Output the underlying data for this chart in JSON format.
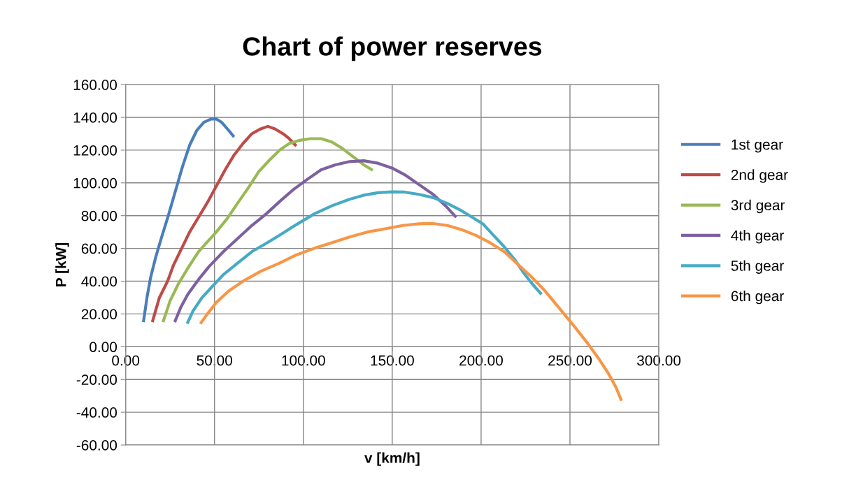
{
  "chart_data": {
    "type": "line",
    "title": "Chart of power reserves",
    "xlabel": "v [km/h]",
    "ylabel": "P [kW]",
    "xlim": [
      0,
      300
    ],
    "ylim": [
      -60,
      160
    ],
    "xticks": [
      {
        "value": 0,
        "label": "0.00"
      },
      {
        "value": 50,
        "label": "50.00"
      },
      {
        "value": 100,
        "label": "100.00"
      },
      {
        "value": 150,
        "label": "150.00"
      },
      {
        "value": 200,
        "label": "200.00"
      },
      {
        "value": 250,
        "label": "250.00"
      },
      {
        "value": 300,
        "label": "300.00"
      }
    ],
    "yticks": [
      {
        "value": -60,
        "label": "-60.00"
      },
      {
        "value": -40,
        "label": "-40.00"
      },
      {
        "value": -20,
        "label": "-20.00"
      },
      {
        "value": 0,
        "label": "0.00"
      },
      {
        "value": 20,
        "label": "20.00"
      },
      {
        "value": 40,
        "label": "40.00"
      },
      {
        "value": 60,
        "label": "60.00"
      },
      {
        "value": 80,
        "label": "80.00"
      },
      {
        "value": 100,
        "label": "100.00"
      },
      {
        "value": 120,
        "label": "120.00"
      },
      {
        "value": 140,
        "label": "140.00"
      },
      {
        "value": 160,
        "label": "160.00"
      }
    ],
    "grid": true,
    "legend": "right",
    "marker": "none",
    "line_style": "solid",
    "series": [
      {
        "name": "1st gear",
        "color": "#4a7ebb",
        "x": [
          10,
          12,
          14,
          17,
          20,
          24,
          28,
          32,
          36,
          40,
          44,
          48,
          51,
          54,
          58,
          61
        ],
        "values": [
          15,
          30,
          42,
          55,
          66,
          80,
          95,
          110,
          123,
          132,
          137,
          139,
          139,
          137,
          132,
          128
        ]
      },
      {
        "name": "2nd gear",
        "color": "#be4b48",
        "x": [
          15,
          19,
          23.6,
          27,
          31.5,
          36,
          41,
          46,
          51,
          56,
          61,
          66,
          71,
          76,
          80,
          84,
          88.6,
          92,
          96
        ],
        "values": [
          15,
          30,
          40,
          50,
          60,
          70,
          79,
          88,
          98,
          108,
          117,
          124,
          130,
          133,
          134.5,
          133,
          130,
          127,
          122.5
        ]
      },
      {
        "name": "3rd gear",
        "color": "#98b954",
        "x": [
          21,
          25,
          29.5,
          35,
          41,
          46,
          51,
          57,
          63,
          69,
          75,
          81,
          86.6,
          92,
          98,
          104,
          110,
          116,
          122,
          128,
          134,
          139
        ],
        "values": [
          15,
          28,
          38,
          48,
          58,
          64,
          70,
          78,
          87.6,
          97,
          107,
          114,
          120,
          124,
          126,
          127,
          127,
          125,
          121,
          116,
          111,
          107.7
        ]
      },
      {
        "name": "4th gear",
        "color": "#7d60a0",
        "x": [
          27.6,
          31,
          35,
          41,
          47,
          55,
          63,
          71,
          79,
          87,
          94.5,
          102,
          110,
          118,
          126,
          134,
          142,
          150,
          157,
          165,
          173,
          180,
          186
        ],
        "values": [
          15,
          24,
          32,
          41,
          49,
          58,
          66,
          74,
          81,
          89,
          96,
          102,
          108,
          111,
          113,
          113.5,
          112,
          109,
          105,
          99,
          93,
          86,
          79
        ]
      },
      {
        "name": "5th gear",
        "color": "#46aac5",
        "x": [
          34.6,
          38,
          43,
          49,
          55,
          63,
          71,
          79,
          86.6,
          96,
          106,
          116,
          126,
          134,
          142,
          150,
          157,
          165,
          173,
          181,
          189,
          195,
          201,
          207,
          213,
          219,
          224,
          229,
          234
        ],
        "values": [
          14,
          22,
          30,
          37,
          44,
          51,
          58,
          63,
          68,
          74.5,
          81,
          86,
          90,
          92.5,
          94,
          94.5,
          94.4,
          93,
          91,
          87.5,
          83,
          79,
          75,
          68,
          61,
          53,
          45,
          38,
          32
        ]
      },
      {
        "name": "6th gear",
        "color": "#f79646",
        "x": [
          42,
          46,
          51,
          58,
          67,
          76,
          86.6,
          96,
          106,
          116,
          126,
          136,
          146,
          156,
          165,
          173,
          181,
          189,
          197,
          205,
          213,
          220,
          228,
          236,
          244,
          252,
          260,
          266,
          272,
          276,
          279
        ],
        "values": [
          14,
          20,
          27,
          34,
          40.6,
          46,
          51,
          56,
          60,
          63.5,
          67,
          70,
          72,
          74,
          75,
          75.2,
          74,
          71.5,
          68,
          63.5,
          58,
          51,
          43,
          34,
          23.5,
          13,
          2,
          -7,
          -17,
          -25,
          -33
        ]
      }
    ]
  }
}
